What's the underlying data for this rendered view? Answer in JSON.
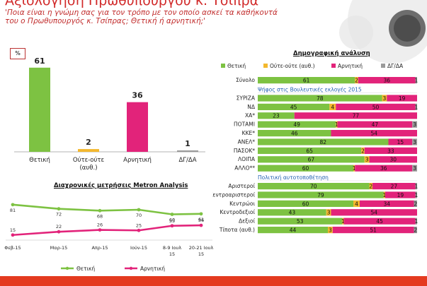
{
  "header": {
    "title": "Αξιολόγηση Πρωθυπουργού κ. Τσίπρα",
    "question_line1": "'Ποια είναι η γνώμη σας για τον τρόπο με τον οποίο ασκεί τα καθήκοντά",
    "question_line2": "του ο Πρωθυπουργός κ. Τσίπρας; Θετική ή αρνητική;'"
  },
  "colors": {
    "positive": "#7dc242",
    "neutral": "#f3b82e",
    "negative": "#e2237a",
    "dkna": "#9a9a9a",
    "accent_red": "#e43a1f",
    "section_blue": "#1f5fb1"
  },
  "chart_data": [
    {
      "type": "bar",
      "unit_label": "%",
      "categories": [
        "Θετική",
        "Ούτε-ούτε (αυθ.)",
        "Αρνητική",
        "ΔΓ/ΔΑ"
      ],
      "values": [
        61,
        2,
        36,
        1
      ],
      "ylim": [
        0,
        65
      ]
    },
    {
      "type": "line",
      "title": "Διαχρονικές μετρήσεις Metron Analysis",
      "x": [
        "Φεβ-15",
        "Μαρ-15",
        "Απρ-15",
        "Ιούν-15",
        "8-9 Ιουλ-15",
        "20-21 Ιουλ-15"
      ],
      "series": [
        {
          "name": "Θετική",
          "values": [
            81,
            72,
            68,
            70,
            60,
            61
          ]
        },
        {
          "name": "Αρνητική",
          "values": [
            15,
            22,
            26,
            25,
            35,
            36
          ]
        }
      ],
      "ylim": [
        0,
        100
      ]
    },
    {
      "type": "bar",
      "stacked": true,
      "orientation": "horizontal",
      "title": "Δημογραφική ανάλυση",
      "legend": [
        "Θετική",
        "Ούτε-ούτε (αυθ.)",
        "Αρνητική",
        "ΔΓ/ΔΑ"
      ],
      "legend_placement": "top",
      "groups": [
        {
          "label": "",
          "rows": [
            {
              "label": "Σύνολο",
              "values": [
                61,
                2,
                36,
                1
              ]
            }
          ]
        },
        {
          "label": "Ψήφος στις Βουλευτικές εκλογές 2015",
          "rows": [
            {
              "label": "ΣΥΡΙΖΑ",
              "values": [
                78,
                3,
                19,
                0
              ]
            },
            {
              "label": "ΝΔ",
              "values": [
                45,
                4,
                50,
                1
              ]
            },
            {
              "label": "ΧΑ*",
              "values": [
                23,
                0,
                77,
                0
              ]
            },
            {
              "label": "ΠΟΤΑΜΙ",
              "values": [
                49,
                1,
                47,
                3
              ]
            },
            {
              "label": "ΚΚΕ*",
              "values": [
                46,
                0,
                54,
                0
              ]
            },
            {
              "label": "ΑΝΕΛ*",
              "values": [
                82,
                0,
                15,
                3
              ]
            },
            {
              "label": "ΠΑΣΟΚ*",
              "values": [
                65,
                2,
                33,
                0
              ]
            },
            {
              "label": "ΛΟΙΠΑ",
              "values": [
                67,
                3,
                30,
                0
              ]
            },
            {
              "label": "ΑΛΛΟ**",
              "values": [
                60,
                1,
                36,
                3
              ]
            }
          ]
        },
        {
          "label": "Πολιτική αυτοτοποθέτηση",
          "rows": [
            {
              "label": "Αριστεροί",
              "values": [
                70,
                2,
                27,
                1
              ]
            },
            {
              "label": "Κεντροαριστεροί",
              "values": [
                79,
                1,
                19,
                1
              ]
            },
            {
              "label": "Κεντρώοι",
              "values": [
                60,
                4,
                34,
                2
              ]
            },
            {
              "label": "Κεντροδεξιοί",
              "values": [
                43,
                3,
                54,
                0
              ]
            },
            {
              "label": "Δεξιοί",
              "values": [
                53,
                1,
                45,
                1
              ]
            },
            {
              "label": "Τίποτα (αυθ.)",
              "values": [
                44,
                3,
                51,
                2
              ]
            }
          ]
        }
      ]
    }
  ]
}
